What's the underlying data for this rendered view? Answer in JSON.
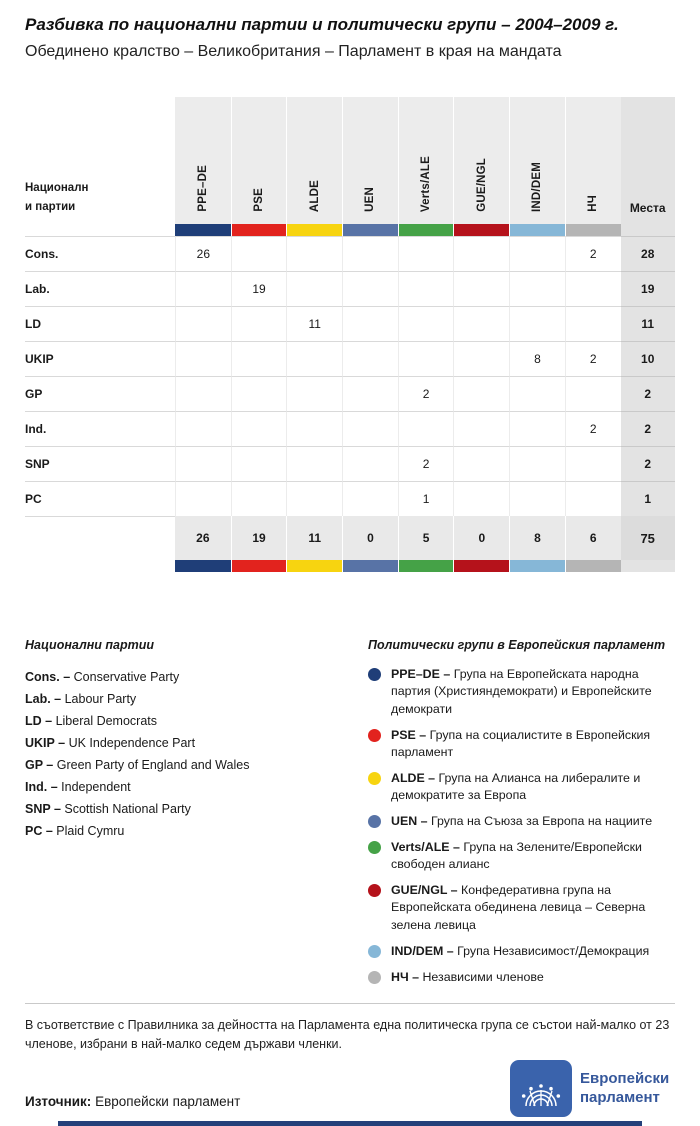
{
  "header": {
    "title": "Разбивка по национални партии и политически групи – 2004–2009 г.",
    "subtitle": "Обединено кралство – Великобритания – Парламент в края на мандата"
  },
  "chart_data": {
    "type": "table",
    "title": "Разбивка по национални партии и политически групи – 2004–2009 г.",
    "subtitle": "Обединено кралство – Великобритания – Парламент в края на мандата",
    "corner_label": "Национални партии",
    "seats_label": "Места",
    "columns": [
      {
        "code": "PPE–DE",
        "color": "#1f3e78"
      },
      {
        "code": "PSE",
        "color": "#e2231e"
      },
      {
        "code": "ALDE",
        "color": "#f7d410"
      },
      {
        "code": "UEN",
        "color": "#5873a6"
      },
      {
        "code": "Verts/ALE",
        "color": "#45a247"
      },
      {
        "code": "GUE/NGL",
        "color": "#b5121b"
      },
      {
        "code": "IND/DEM",
        "color": "#86b7d7"
      },
      {
        "code": "НЧ",
        "color": "#b5b5b5"
      }
    ],
    "rows": [
      {
        "party": "Cons.",
        "values": [
          "26",
          "",
          "",
          "",
          "",
          "",
          "",
          "2"
        ],
        "seats": "28"
      },
      {
        "party": "Lab.",
        "values": [
          "",
          "19",
          "",
          "",
          "",
          "",
          "",
          ""
        ],
        "seats": "19"
      },
      {
        "party": "LD",
        "values": [
          "",
          "",
          "11",
          "",
          "",
          "",
          "",
          ""
        ],
        "seats": "11"
      },
      {
        "party": "UKIP",
        "values": [
          "",
          "",
          "",
          "",
          "",
          "",
          "8",
          "2"
        ],
        "seats": "10"
      },
      {
        "party": "GP",
        "values": [
          "",
          "",
          "",
          "",
          "2",
          "",
          "",
          ""
        ],
        "seats": "2"
      },
      {
        "party": "Ind.",
        "values": [
          "",
          "",
          "",
          "",
          "",
          "",
          "",
          "2"
        ],
        "seats": "2"
      },
      {
        "party": "SNP",
        "values": [
          "",
          "",
          "",
          "",
          "2",
          "",
          "",
          ""
        ],
        "seats": "2"
      },
      {
        "party": "PC",
        "values": [
          "",
          "",
          "",
          "",
          "1",
          "",
          "",
          ""
        ],
        "seats": "1"
      }
    ],
    "totals": {
      "values": [
        "26",
        "19",
        "11",
        "0",
        "5",
        "0",
        "8",
        "6"
      ],
      "seats": "75"
    }
  },
  "legend_parties": {
    "title": "Национални партии",
    "items": [
      {
        "label": "Cons. –",
        "name": "Conservative Party"
      },
      {
        "label": "Lab. –",
        "name": "Labour Party"
      },
      {
        "label": "LD –",
        "name": "Liberal Democrats"
      },
      {
        "label": "UKIP –",
        "name": "UK Independence Part"
      },
      {
        "label": "GP –",
        "name": "Green Party of England and Wales"
      },
      {
        "label": "Ind. –",
        "name": "Independent"
      },
      {
        "label": "SNP –",
        "name": "Scottish National Party"
      },
      {
        "label": "PC –",
        "name": "Plaid Cymru"
      }
    ]
  },
  "legend_groups": {
    "title": "Политически групи в Европейския парламент",
    "items": [
      {
        "label": "PPE–DE –",
        "desc": "Група на Европейската народна партия (Християндемократи) и Европейските демократи"
      },
      {
        "label": "PSE –",
        "desc": "Група на социалистите в Европейския парламент"
      },
      {
        "label": "ALDE –",
        "desc": "Група на Алианса на либералите и демократите за Европа"
      },
      {
        "label": "UEN –",
        "desc": "Група на Съюза за Европа на нациите"
      },
      {
        "label": "Verts/ALE –",
        "desc": "Група на Зелените/Европейски свободен алианс"
      },
      {
        "label": "GUE/NGL –",
        "desc": "Конфедеративна група на Европейската обединена левица – Северна зелена левица"
      },
      {
        "label": "IND/DEM –",
        "desc": "Група Независимост/Демокрация"
      },
      {
        "label": "НЧ –",
        "desc": "Независими членове"
      }
    ]
  },
  "footer": {
    "note": "В съответствие с Правилника за дейността на Парламента една политическа група се състои най-малко от 23 членове, избрани в най-малко седем държави членки.",
    "source_label": "Източник:",
    "source_value": "Европейски парламент",
    "logo_line1": "Европейски",
    "logo_line2": "парламент"
  }
}
